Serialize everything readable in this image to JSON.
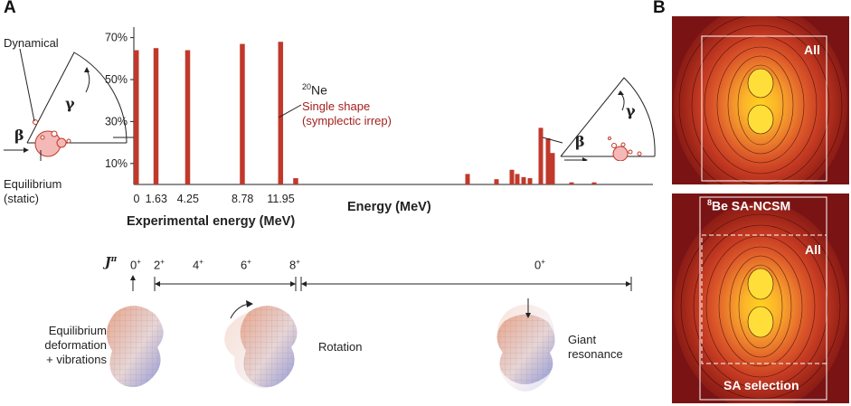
{
  "panel_a_label": "A",
  "panel_b_label": "B",
  "chart_data": {
    "type": "bar",
    "title": "",
    "xlabel": "Energy (MeV)",
    "secondary_xlabel": "Experimental energy (MeV)",
    "ylabel": "",
    "y_ticks": [
      "10%",
      "30%",
      "50%",
      "70%"
    ],
    "ylim": [
      0,
      75
    ],
    "x_tick_labels": [
      "0",
      "1.63",
      "4.25",
      "8.78",
      "11.95"
    ],
    "low_energy_bars": [
      {
        "energy": 0,
        "value": 64
      },
      {
        "energy": 1.63,
        "value": 65
      },
      {
        "energy": 4.25,
        "value": 64
      },
      {
        "energy": 8.78,
        "value": 67
      },
      {
        "energy": 11.95,
        "value": 68
      },
      {
        "energy": 13.2,
        "value": 3
      }
    ],
    "high_energy_bars": [
      {
        "value": 5
      },
      {
        "value": 2.5
      },
      {
        "value": 7
      },
      {
        "value": 5
      },
      {
        "value": 3.5
      },
      {
        "value": 3
      },
      {
        "value": 27
      },
      {
        "value": 22
      },
      {
        "value": 15
      },
      {
        "value": 1
      },
      {
        "value": 1
      }
    ]
  },
  "annotations": {
    "nucleus_mass": "20",
    "nucleus_symbol": "Ne",
    "single_shape_line1": "Single shape",
    "single_shape_line2": "(symplectic irrep)",
    "dynamical": "Dynamical",
    "equilibrium_line1": "Equilibrium",
    "equilibrium_line2": "(static)",
    "beta": "β",
    "gamma": "γ"
  },
  "spin_row": {
    "j_label": "J",
    "j_sup": "π",
    "items": [
      {
        "label": "0",
        "sup": "+"
      },
      {
        "label": "2",
        "sup": "+"
      },
      {
        "label": "4",
        "sup": "+"
      },
      {
        "label": "6",
        "sup": "+"
      },
      {
        "label": "8",
        "sup": "+"
      },
      {
        "label": "0",
        "sup": "+"
      }
    ]
  },
  "modes": {
    "equilibrium_line1": "Equilibrium",
    "equilibrium_line2": "deformation",
    "equilibrium_line3": "+ vibrations",
    "rotation": "Rotation",
    "giant_line1": "Giant",
    "giant_line2": "resonance"
  },
  "panel_b": {
    "top_label": "All",
    "bottom_title_sup": "8",
    "bottom_title": "Be SA-NCSM",
    "bottom_all": "All",
    "bottom_selection": "SA selection"
  },
  "colors": {
    "bar": "#c0392b",
    "accent_text": "#a3201d",
    "density_bg": "#7a1414"
  }
}
